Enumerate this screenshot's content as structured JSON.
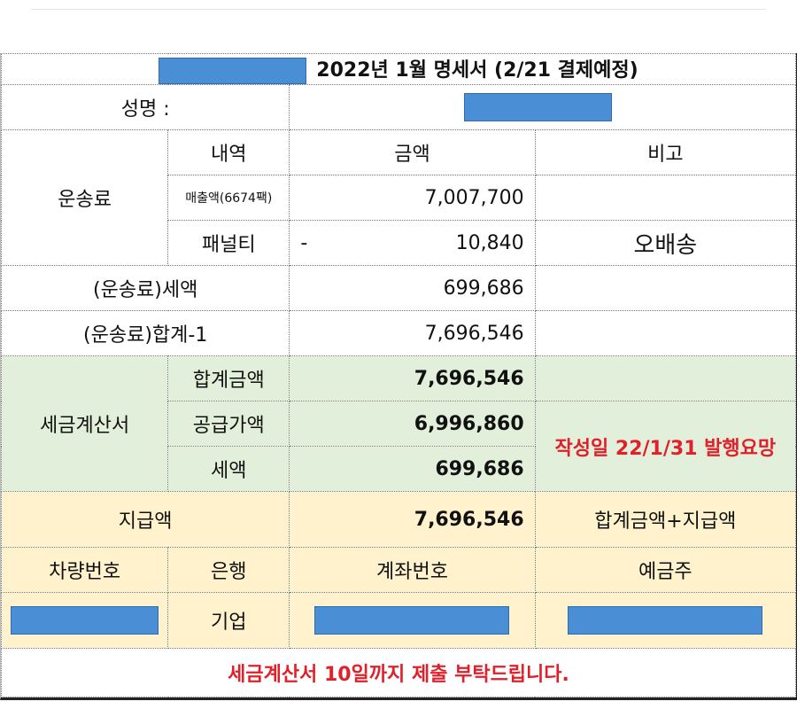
{
  "header": {
    "title": "2022년 1월 명세서 (2/21 결제예정)"
  },
  "name_row": {
    "label": "성명 :"
  },
  "columns": {
    "item": "내역",
    "amount": "금액",
    "note": "비고"
  },
  "shipping": {
    "group_label": "운송료",
    "sales_label": "매출액(6674팩)",
    "sales_amount": "7,007,700",
    "penalty_label": "패널티",
    "penalty_sign": "-",
    "penalty_amount": "10,840",
    "penalty_note": "오배송",
    "tax_label": "(운송료)세액",
    "tax_amount": "699,686",
    "total_label": "(운송료)합계-1",
    "total_amount": "7,696,546"
  },
  "invoice": {
    "group_label": "세금계산서",
    "total_label": "합계금액",
    "total_amount": "7,696,546",
    "supply_label": "공급가액",
    "supply_amount": "6,996,860",
    "tax_label": "세액",
    "tax_amount": "699,686",
    "note": "작성일 22/1/31 발행요망"
  },
  "payment": {
    "label": "지급액",
    "amount": "7,696,546",
    "note": "합계금액+지급액"
  },
  "account": {
    "vehicle_label": "차량번호",
    "bank_label": "은행",
    "account_label": "계좌번호",
    "holder_label": "예금주",
    "bank_value": "기업"
  },
  "footer": {
    "notice": "세금계산서 10일까지 제출 부탁드립니다."
  },
  "colors": {
    "redaction": "#4a8fd6",
    "green_band": "#e2efda",
    "yellow_band": "#fff2cc",
    "alert_red": "#e0202a"
  }
}
